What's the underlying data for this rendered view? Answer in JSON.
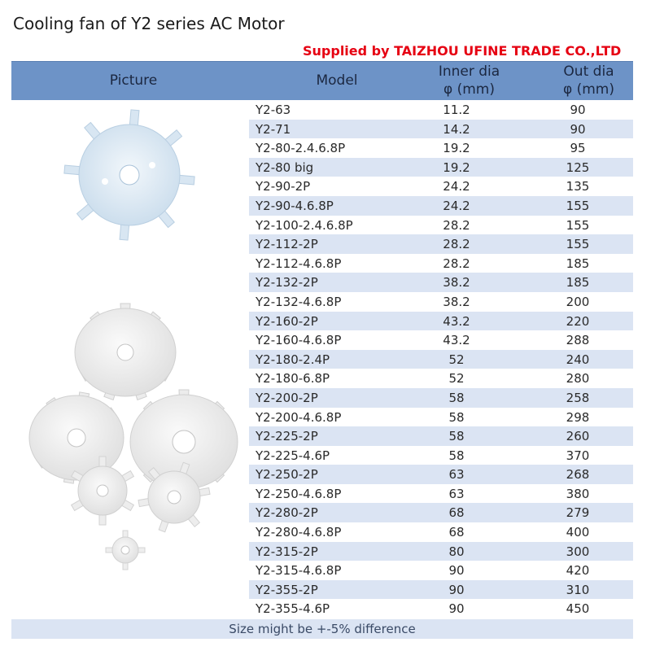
{
  "title": "Cooling fan of Y2 series AC Motor",
  "supplier": "Supplied by TAIZHOU UFINE TRADE CO.,LTD",
  "header": {
    "picture": "Picture",
    "model": "Model",
    "inner_line1": "Inner dia",
    "inner_line2": "φ (mm)",
    "out_line1": "Out dia",
    "out_line2": "φ (mm)"
  },
  "rows": [
    {
      "model": "Y2-63",
      "inner": "11.2",
      "out": "90"
    },
    {
      "model": "Y2-71",
      "inner": "14.2",
      "out": "90"
    },
    {
      "model": "Y2-80-2.4.6.8P",
      "inner": "19.2",
      "out": "95"
    },
    {
      "model": "Y2-80 big",
      "inner": "19.2",
      "out": "125"
    },
    {
      "model": "Y2-90-2P",
      "inner": "24.2",
      "out": "135"
    },
    {
      "model": "Y2-90-4.6.8P",
      "inner": "24.2",
      "out": "155"
    },
    {
      "model": "Y2-100-2.4.6.8P",
      "inner": "28.2",
      "out": "155"
    },
    {
      "model": "Y2-112-2P",
      "inner": "28.2",
      "out": "155"
    },
    {
      "model": "Y2-112-4.6.8P",
      "inner": "28.2",
      "out": "185"
    },
    {
      "model": "Y2-132-2P",
      "inner": "38.2",
      "out": "185"
    },
    {
      "model": "Y2-132-4.6.8P",
      "inner": "38.2",
      "out": "200"
    },
    {
      "model": "Y2-160-2P",
      "inner": "43.2",
      "out": "220"
    },
    {
      "model": "Y2-160-4.6.8P",
      "inner": "43.2",
      "out": "288"
    },
    {
      "model": "Y2-180-2.4P",
      "inner": "52",
      "out": "240"
    },
    {
      "model": "Y2-180-6.8P",
      "inner": "52",
      "out": "280"
    },
    {
      "model": "Y2-200-2P",
      "inner": "58",
      "out": "258"
    },
    {
      "model": "Y2-200-4.6.8P",
      "inner": "58",
      "out": "298"
    },
    {
      "model": "Y2-225-2P",
      "inner": "58",
      "out": "260"
    },
    {
      "model": "Y2-225-4.6P",
      "inner": "58",
      "out": "370"
    },
    {
      "model": "Y2-250-2P",
      "inner": "63",
      "out": "268"
    },
    {
      "model": "Y2-250-4.6.8P",
      "inner": "63",
      "out": "380"
    },
    {
      "model": "Y2-280-2P",
      "inner": "68",
      "out": "279"
    },
    {
      "model": "Y2-280-4.6.8P",
      "inner": "68",
      "out": "400"
    },
    {
      "model": "Y2-315-2P",
      "inner": "80",
      "out": "300"
    },
    {
      "model": "Y2-315-4.6.8P",
      "inner": "90",
      "out": "420"
    },
    {
      "model": "Y2-355-2P",
      "inner": "90",
      "out": "310"
    },
    {
      "model": "Y2-355-4.6P",
      "inner": "90",
      "out": "450"
    }
  ],
  "footer": "Size might be +-5% difference"
}
